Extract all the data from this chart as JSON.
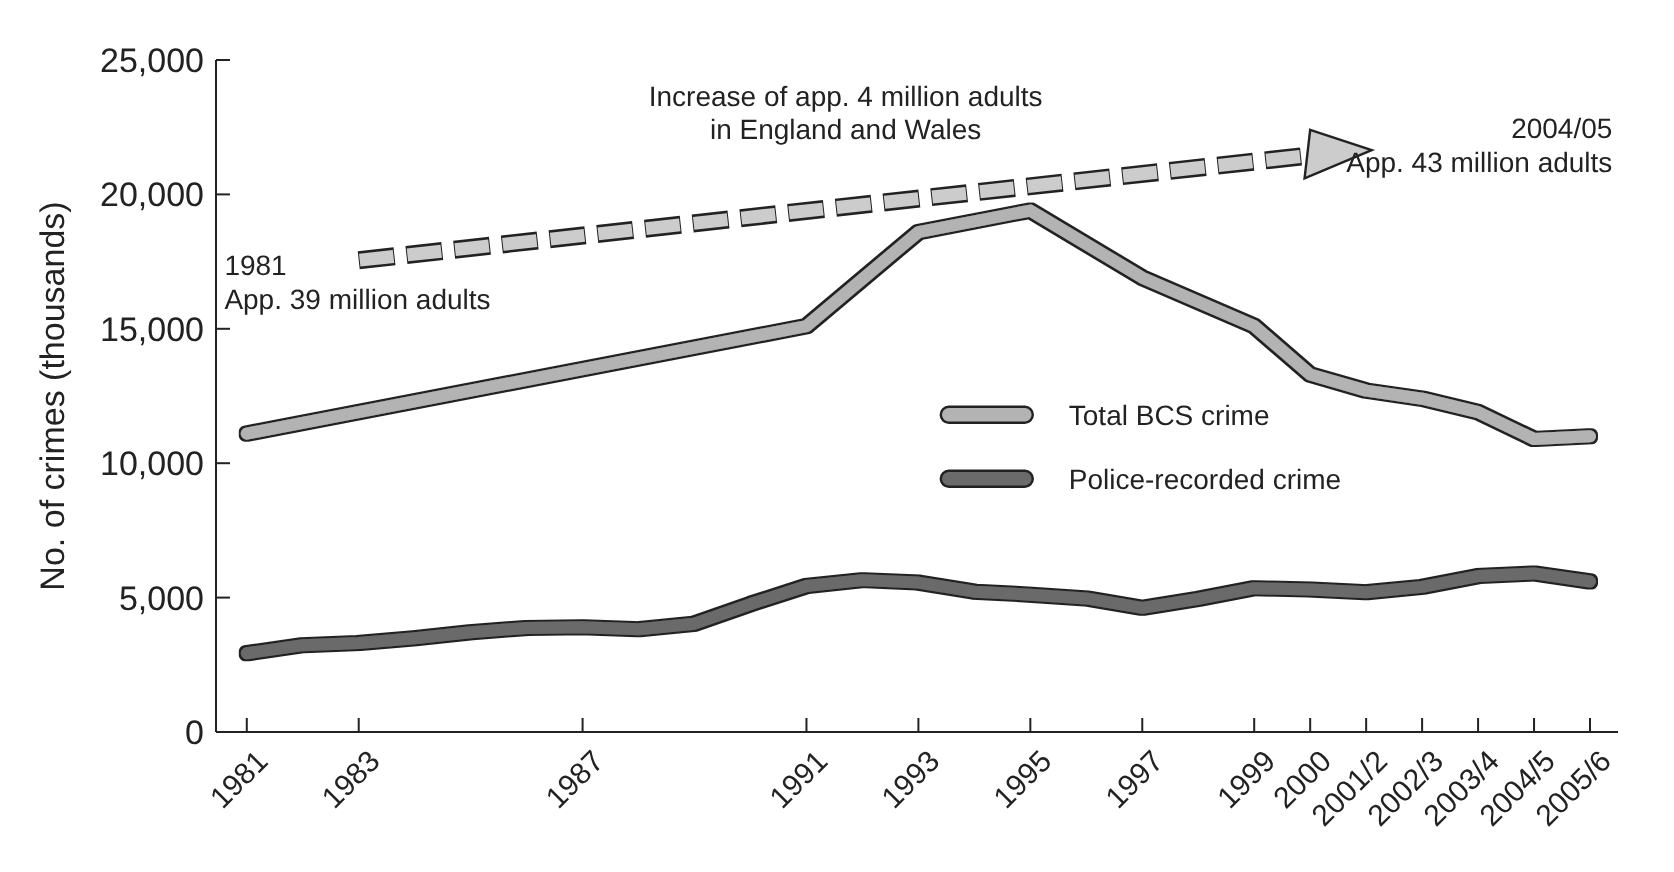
{
  "chart_data": {
    "type": "line",
    "ylabel": "No. of crimes (thousands)",
    "x": [
      1981,
      1982,
      1983,
      1984,
      1985,
      1986,
      1987,
      1988,
      1989,
      1990,
      1991,
      1992,
      1993,
      1994,
      1995,
      1996,
      1997,
      1998,
      1999,
      2000,
      2001,
      2002,
      2003,
      2004,
      2005
    ],
    "xlim": [
      1980.45,
      2005.5
    ],
    "xticks": [
      1981,
      1983,
      1987,
      1991,
      1993,
      1995,
      1997,
      1999,
      2000,
      {
        "value": 2001,
        "label": "2001/2"
      },
      {
        "value": 2002,
        "label": "2002/3"
      },
      {
        "value": 2003,
        "label": "2003/4"
      },
      {
        "value": 2004,
        "label": "2004/5"
      },
      {
        "value": 2005,
        "label": "2005/6"
      }
    ],
    "ylim": [
      0,
      25000
    ],
    "yticks": [
      {
        "value": 0,
        "label": "0"
      },
      {
        "value": 5000,
        "label": "5,000"
      },
      {
        "value": 10000,
        "label": "10,000"
      },
      {
        "value": 15000,
        "label": "15,000"
      },
      {
        "value": 20000,
        "label": "20,000"
      },
      {
        "value": 25000,
        "label": "25,000"
      }
    ],
    "series": [
      {
        "name": "Total BCS crime",
        "color": "#b3b3b3",
        "x": [
          1981,
          1991,
          1993,
          1995,
          1997,
          1999,
          2000,
          2001,
          2002,
          2003,
          2004,
          2005
        ],
        "values": [
          11100,
          15100,
          18600,
          19400,
          16900,
          15100,
          13300,
          12700,
          12400,
          11900,
          10900,
          11000
        ]
      },
      {
        "name": "Police-recorded crime",
        "color": "#6b6b6b",
        "values": [
          2930,
          3230,
          3310,
          3490,
          3710,
          3870,
          3900,
          3820,
          4030,
          4760,
          5430,
          5650,
          5560,
          5220,
          5110,
          4970,
          4620,
          4950,
          5350,
          5300,
          5200,
          5400,
          5800,
          5900,
          5600
        ]
      }
    ],
    "annotations": [
      "Increase of app. 4 million adults\nin England and Wales",
      "1981\nApp. 39 million adults",
      "2004/05\nApp. 43 million adults"
    ],
    "legend": "right",
    "grid": false
  }
}
